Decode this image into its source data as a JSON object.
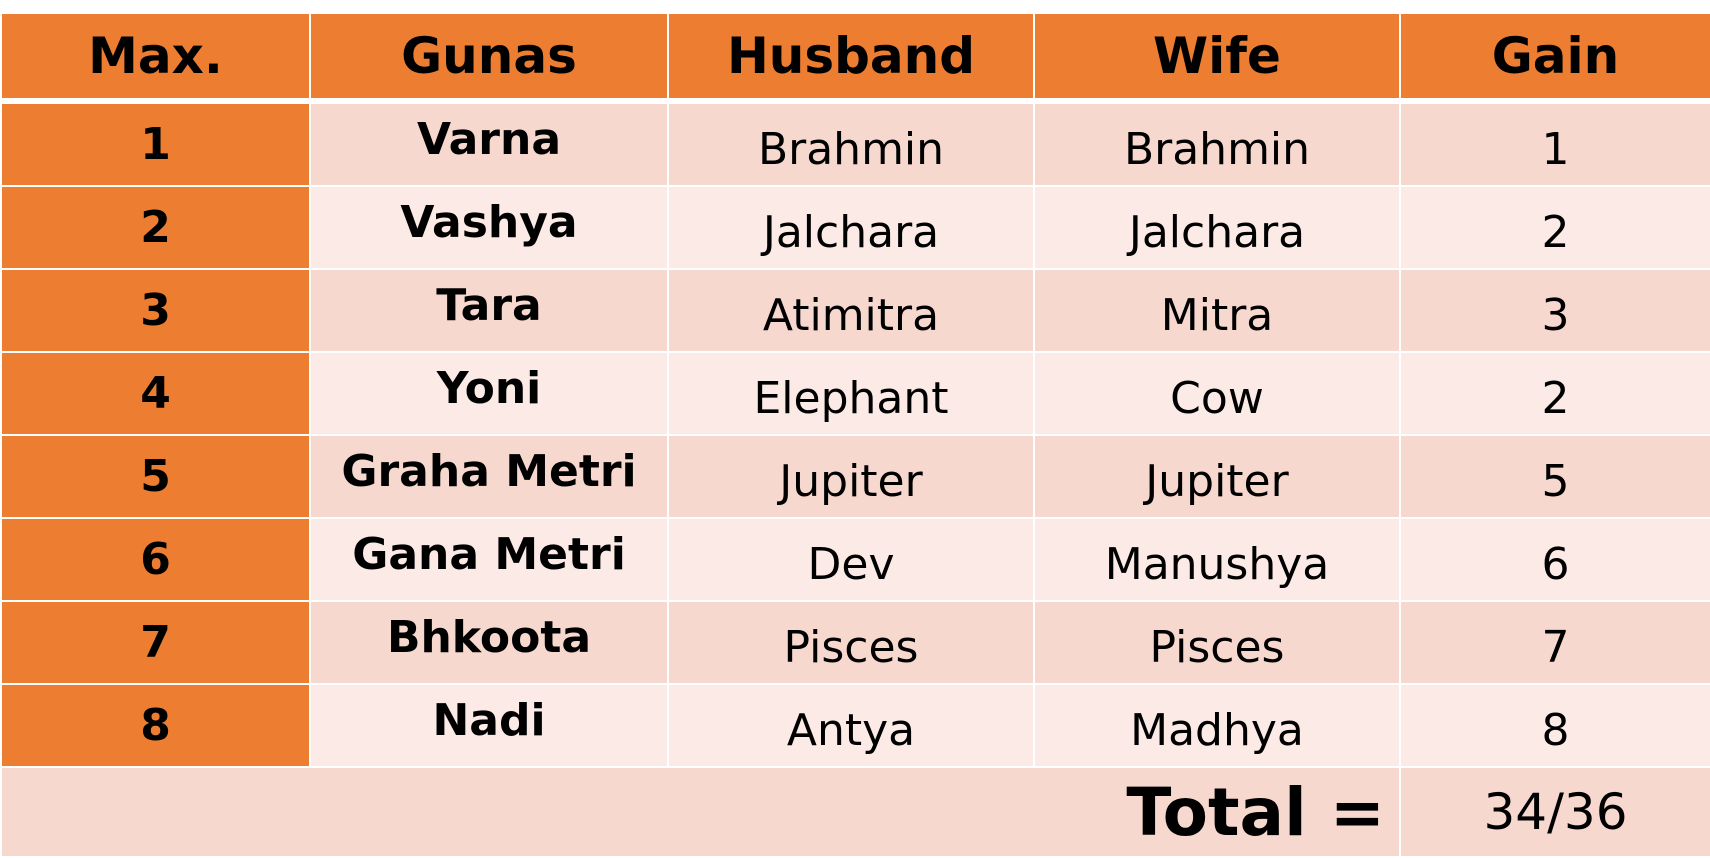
{
  "table": {
    "headers": [
      "Max.",
      "Gunas",
      "Husband",
      "Wife",
      "Gain"
    ],
    "rows": [
      {
        "max": "1",
        "guna": "Varna",
        "husband": "Brahmin",
        "wife": "Brahmin",
        "gain": "1"
      },
      {
        "max": "2",
        "guna": "Vashya",
        "husband": "Jalchara",
        "wife": "Jalchara",
        "gain": "2"
      },
      {
        "max": "3",
        "guna": "Tara",
        "husband": "Atimitra",
        "wife": "Mitra",
        "gain": "3"
      },
      {
        "max": "4",
        "guna": "Yoni",
        "husband": "Elephant",
        "wife": "Cow",
        "gain": "2"
      },
      {
        "max": "5",
        "guna": "Graha Metri",
        "husband": "Jupiter",
        "wife": "Jupiter",
        "gain": "5"
      },
      {
        "max": "6",
        "guna": "Gana Metri",
        "husband": "Dev",
        "wife": "Manushya",
        "gain": "6"
      },
      {
        "max": "7",
        "guna": "Bhkoota",
        "husband": "Pisces",
        "wife": "Pisces",
        "gain": "7"
      },
      {
        "max": "8",
        "guna": "Nadi",
        "husband": "Antya",
        "wife": "Madhya",
        "gain": "8"
      }
    ],
    "total_label": "Total =",
    "total_value": "34/36"
  },
  "colors": {
    "header": "#ED7D31",
    "row_dark": "#F7D8CF",
    "row_light": "#FBEAE6",
    "text": "#000000"
  }
}
